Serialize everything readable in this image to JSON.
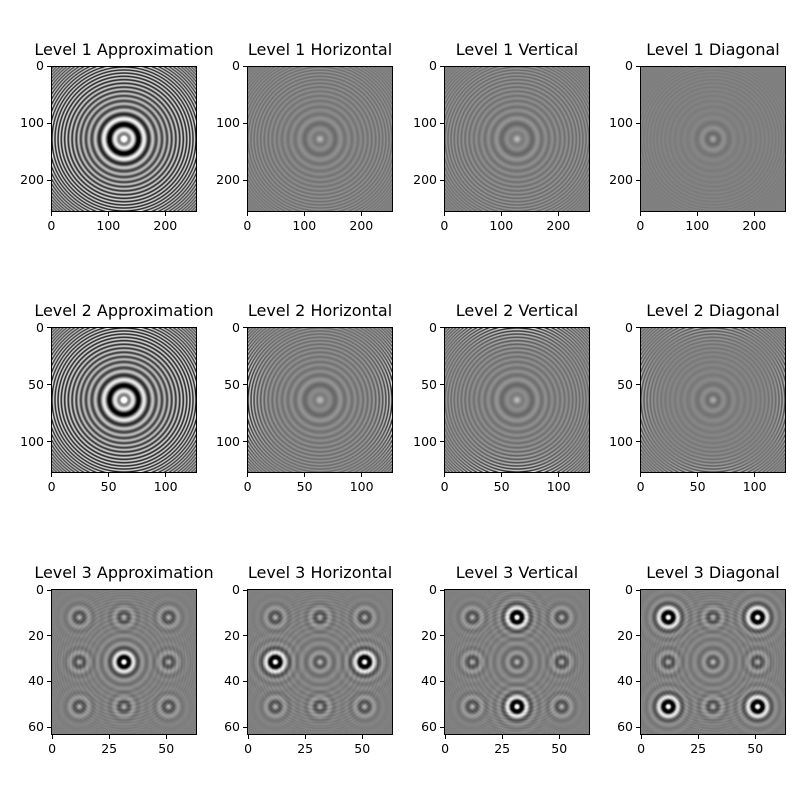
{
  "chart_data": {
    "type": "heatmap",
    "colormap": "gray",
    "panels": [
      {
        "title": "Level 1 Approximation",
        "size": 256,
        "ticks": [
          0,
          100,
          200
        ],
        "kind": "approximation"
      },
      {
        "title": "Level 1 Horizontal",
        "size": 256,
        "ticks": [
          0,
          100,
          200
        ],
        "kind": "horizontal"
      },
      {
        "title": "Level 1 Vertical",
        "size": 256,
        "ticks": [
          0,
          100,
          200
        ],
        "kind": "vertical"
      },
      {
        "title": "Level 1 Diagonal",
        "size": 256,
        "ticks": [
          0,
          100,
          200
        ],
        "kind": "diagonal"
      },
      {
        "title": "Level 2 Approximation",
        "size": 128,
        "ticks": [
          0,
          50,
          100
        ],
        "kind": "approximation"
      },
      {
        "title": "Level 2 Horizontal",
        "size": 128,
        "ticks": [
          0,
          50,
          100
        ],
        "kind": "horizontal"
      },
      {
        "title": "Level 2 Vertical",
        "size": 128,
        "ticks": [
          0,
          50,
          100
        ],
        "kind": "vertical"
      },
      {
        "title": "Level 2 Diagonal",
        "size": 128,
        "ticks": [
          0,
          50,
          100
        ],
        "kind": "diagonal"
      },
      {
        "title": "Level 3 Approximation",
        "size": 64,
        "ticks": [
          0,
          20,
          40,
          60
        ],
        "xticks": [
          0,
          25,
          50
        ],
        "kind": "approximation"
      },
      {
        "title": "Level 3 Horizontal",
        "size": 64,
        "ticks": [
          0,
          20,
          40,
          60
        ],
        "xticks": [
          0,
          25,
          50
        ],
        "kind": "horizontal"
      },
      {
        "title": "Level 3 Vertical",
        "size": 64,
        "ticks": [
          0,
          20,
          40,
          60
        ],
        "xticks": [
          0,
          25,
          50
        ],
        "kind": "vertical"
      },
      {
        "title": "Level 3 Diagonal",
        "size": 64,
        "ticks": [
          0,
          20,
          40,
          60
        ],
        "xticks": [
          0,
          25,
          50
        ],
        "kind": "diagonal"
      }
    ]
  }
}
